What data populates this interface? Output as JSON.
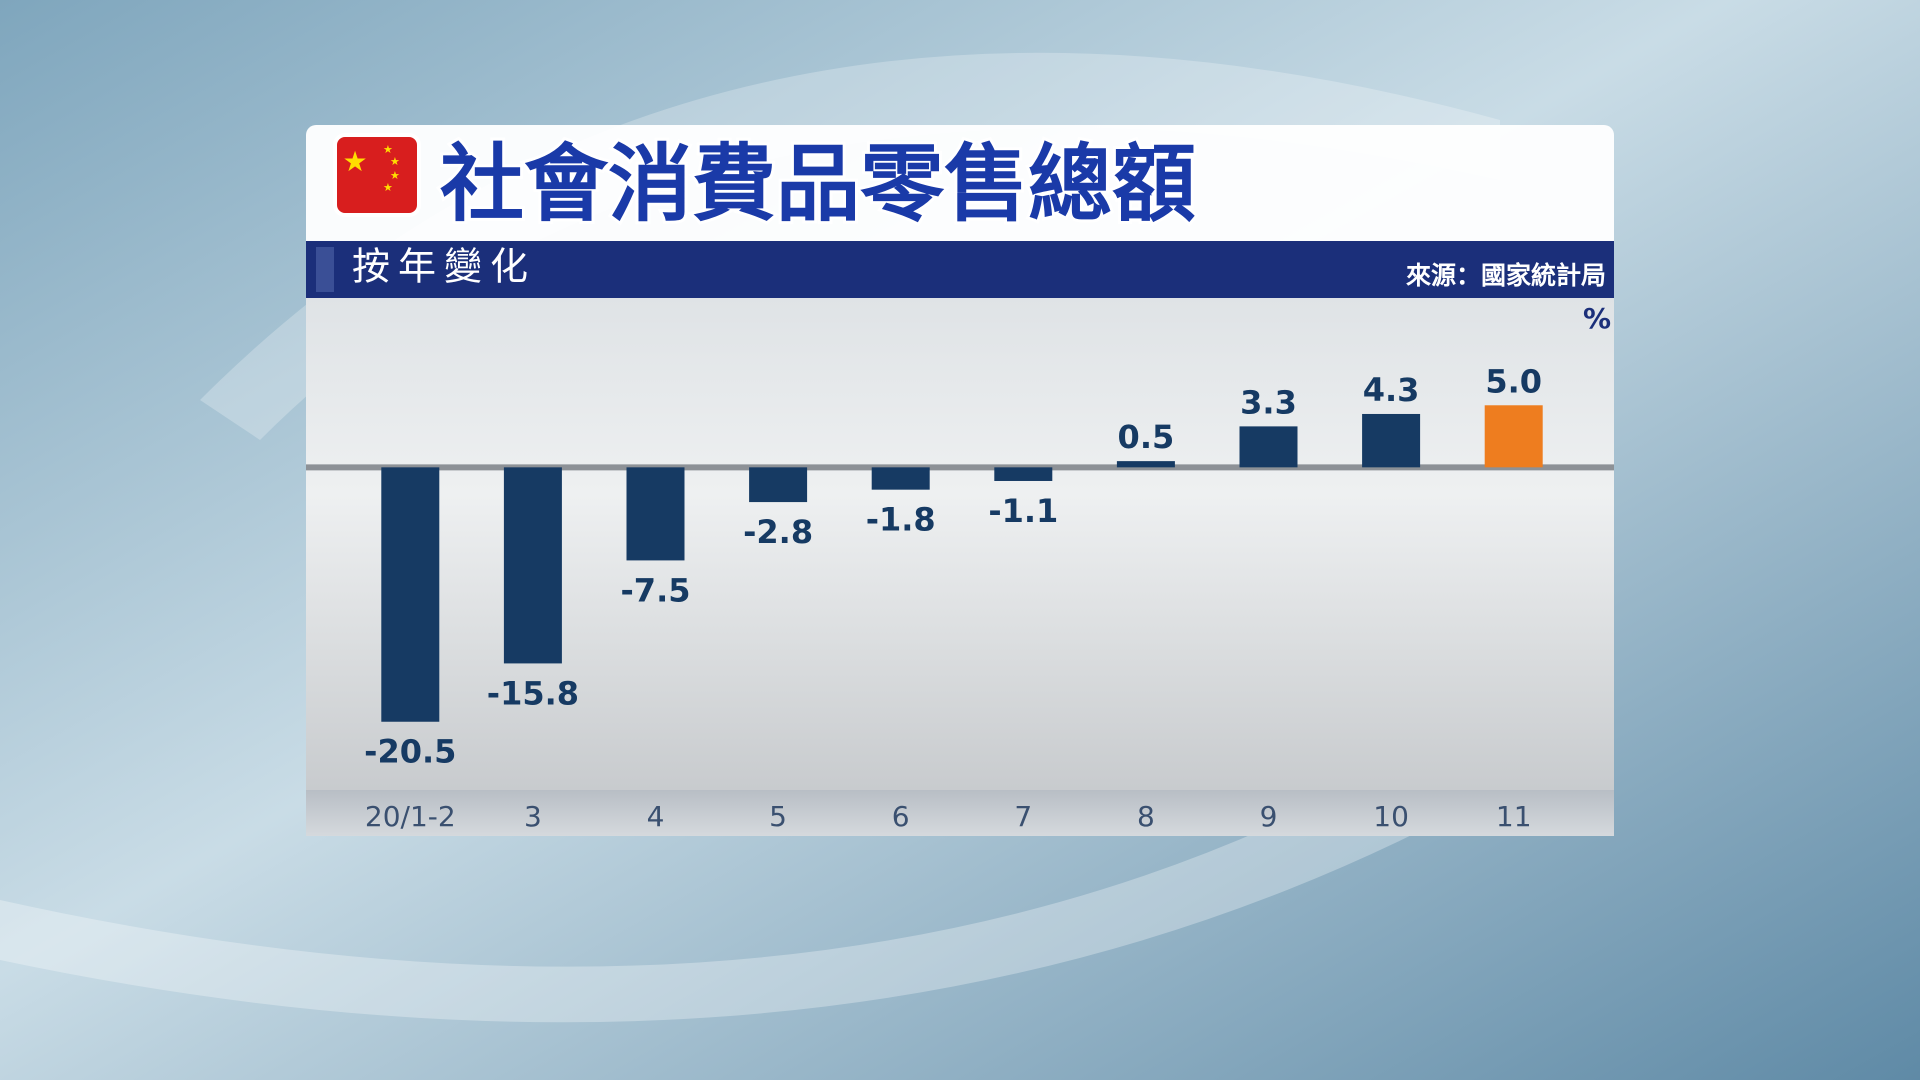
{
  "chart_data": {
    "type": "bar",
    "title": "社會消費品零售總額",
    "subtitle": "按年變化",
    "source": "來源：國家統計局",
    "unit": "%",
    "categories": [
      "20/1-2",
      "3",
      "4",
      "5",
      "6",
      "7",
      "8",
      "9",
      "10",
      "11"
    ],
    "values": [
      -20.5,
      -15.8,
      -7.5,
      -2.8,
      -1.8,
      -1.1,
      0.5,
      3.3,
      4.3,
      5.0
    ],
    "value_labels": [
      "-20.5",
      "-15.8",
      "-7.5",
      "-2.8",
      "-1.8",
      "-1.1",
      "0.5",
      "3.3",
      "4.3",
      "5.0"
    ],
    "colors": [
      "#163a63",
      "#163a63",
      "#163a63",
      "#163a63",
      "#163a63",
      "#163a63",
      "#163a63",
      "#163a63",
      "#163a63",
      "#ee7d1f"
    ],
    "ylim": [
      -26,
      13
    ]
  }
}
